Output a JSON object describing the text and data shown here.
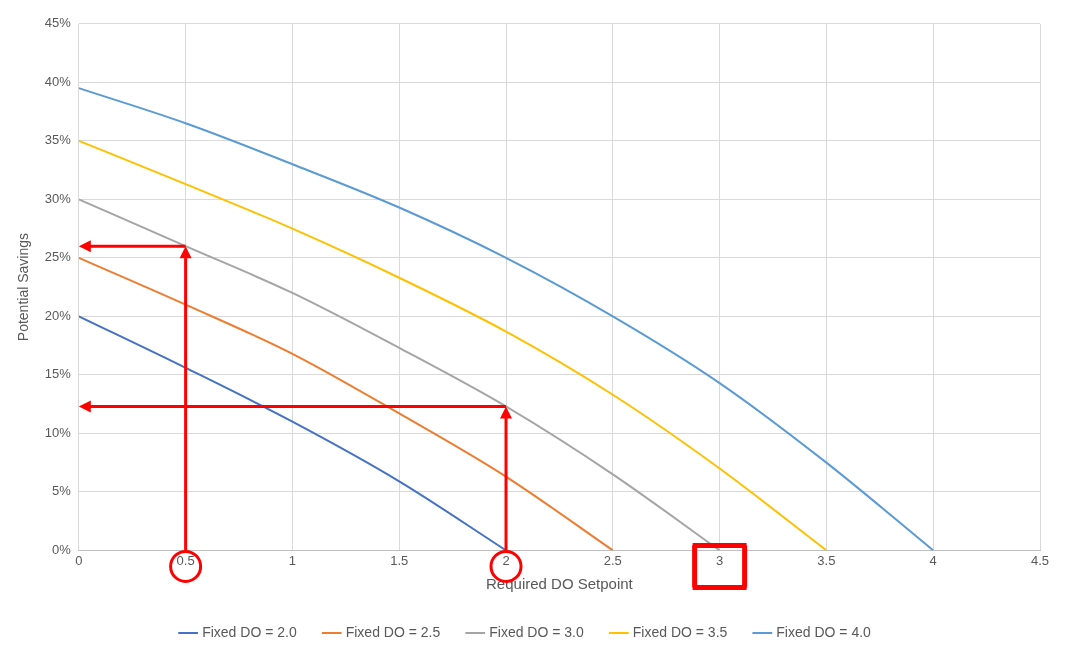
{
  "chart_data": {
    "type": "line",
    "xlabel": "Required DO Setpoint",
    "ylabel": "Potential Savings",
    "xlim": [
      0,
      4.5
    ],
    "xticks": [
      0,
      0.5,
      1,
      1.5,
      2,
      2.5,
      3,
      3.5,
      4,
      4.5
    ],
    "ylim": [
      0,
      45
    ],
    "yticks": [
      {
        "value": 0,
        "label": "0%"
      },
      {
        "value": 5,
        "label": "5%"
      },
      {
        "value": 10,
        "label": "10%"
      },
      {
        "value": 15,
        "label": "15%"
      },
      {
        "value": 20,
        "label": "20%"
      },
      {
        "value": 25,
        "label": "25%"
      },
      {
        "value": 30,
        "label": "30%"
      },
      {
        "value": 35,
        "label": "35%"
      },
      {
        "value": 40,
        "label": "40%"
      },
      {
        "value": 45,
        "label": "45%"
      }
    ],
    "grid": true,
    "legend": "bottom",
    "marker": "none",
    "line_style": "solid",
    "series": [
      {
        "name": "Fixed DO = 2.0",
        "color": "#4472c4",
        "x": [
          0,
          0.5,
          1,
          1.5,
          2
        ],
        "values": [
          20,
          15.6,
          11,
          5.9,
          0
        ]
      },
      {
        "name": "Fixed DO = 2.5",
        "color": "#ed7d31",
        "x": [
          0,
          0.5,
          1,
          1.5,
          2,
          2.5
        ],
        "values": [
          25,
          21,
          16.8,
          11.7,
          6.3,
          0
        ]
      },
      {
        "name": "Fixed DO = 3.0",
        "color": "#a5a5a5",
        "x": [
          0,
          0.5,
          1,
          1.5,
          2,
          2.5,
          3
        ],
        "values": [
          30,
          26,
          22,
          17.3,
          12.3,
          6.5,
          0
        ]
      },
      {
        "name": "Fixed DO = 3.5",
        "color": "#ffc000",
        "x": [
          0,
          0.5,
          1,
          1.5,
          2,
          2.5,
          3,
          3.5
        ],
        "values": [
          35,
          31.3,
          27.5,
          23.3,
          18.7,
          13.3,
          7,
          0
        ]
      },
      {
        "name": "Fixed DO = 4.0",
        "color": "#5b9bd5",
        "x": [
          0,
          0.5,
          1,
          1.5,
          2,
          2.5,
          3,
          3.5,
          4
        ],
        "values": [
          39.5,
          36.5,
          33,
          29.3,
          25,
          20,
          14.3,
          7.5,
          0
        ]
      }
    ]
  }
}
